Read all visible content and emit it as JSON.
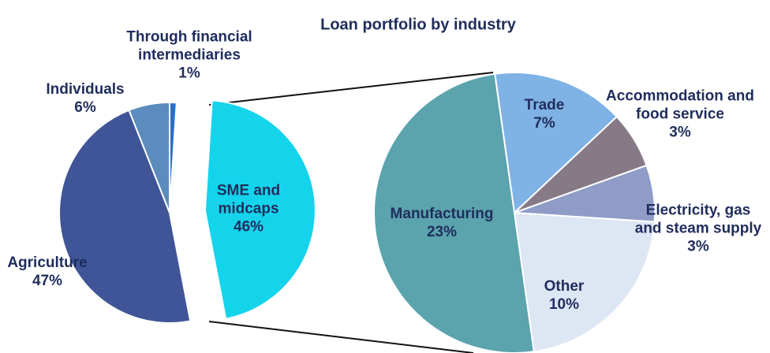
{
  "chart_data": [
    {
      "type": "pie",
      "categories": [
        "Through financial intermediaries",
        "SME and midcaps",
        "Agriculture",
        "Individuals"
      ],
      "values": [
        1,
        46,
        47,
        6
      ],
      "value_labels": [
        "1%",
        "46%",
        "47%",
        "6%"
      ],
      "colors": [
        "#2b6fc7",
        "#14d4ec",
        "#3f5597",
        "#5b8cbd"
      ]
    },
    {
      "type": "pie",
      "title": "Loan portfolio by industry",
      "categories": [
        "Trade",
        "Accommodation and food service",
        "Electricity, gas and steam supply",
        "Other",
        "Manufacturing"
      ],
      "values": [
        7,
        3,
        3,
        10,
        23
      ],
      "value_labels": [
        "7%",
        "3%",
        "3%",
        "10%",
        "23%"
      ],
      "colors": [
        "#7fb2e5",
        "#857a86",
        "#8f9cc8",
        "#dde6f3",
        "#5ba3ad"
      ]
    }
  ]
}
